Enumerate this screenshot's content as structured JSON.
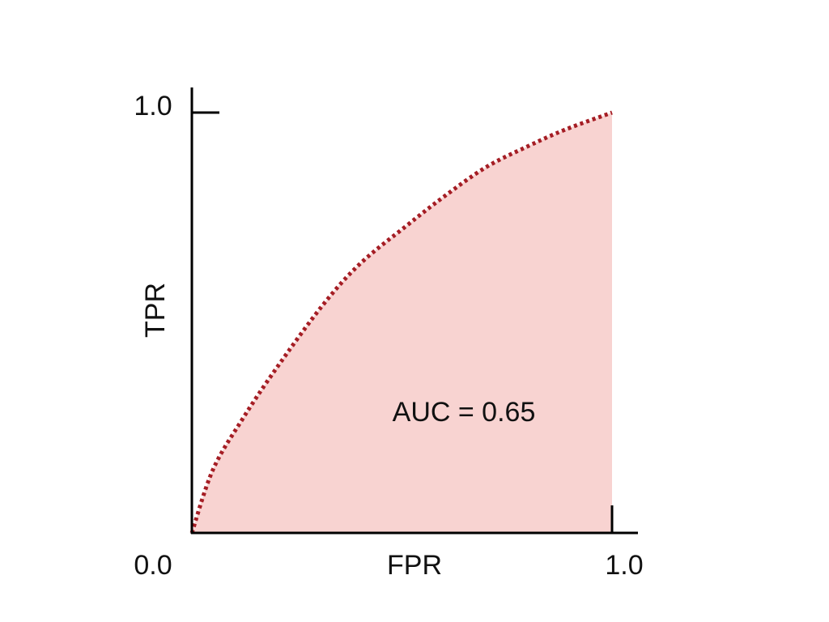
{
  "chart_data": {
    "type": "area",
    "xlabel": "FPR",
    "ylabel": "TPR",
    "xlim": [
      0,
      1
    ],
    "ylim": [
      0,
      1
    ],
    "x_ticks": [
      "0.0",
      "1.0"
    ],
    "y_ticks": [
      "1.0"
    ],
    "grid": false,
    "annotation": "AUC = 0.65",
    "colors": {
      "line": "#a51d24",
      "fill": "#f8d3d1",
      "axis": "#000000"
    },
    "line_style": "dotted",
    "series": [
      {
        "x": [
          0,
          0.05,
          0.12,
          0.2,
          0.31,
          0.4,
          0.51,
          0.6,
          0.7,
          0.8,
          0.89,
          1.0
        ],
        "y": [
          0,
          0.15,
          0.27,
          0.39,
          0.54,
          0.64,
          0.73,
          0.8,
          0.87,
          0.92,
          0.96,
          1.0
        ]
      }
    ]
  }
}
